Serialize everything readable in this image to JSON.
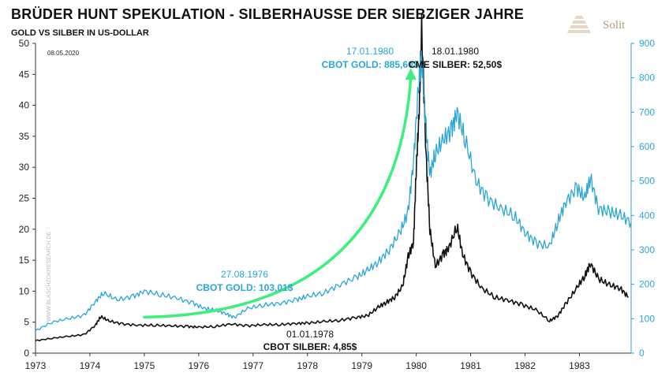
{
  "header": {
    "title": "BRÜDER HUNT SPEKULATION - SILBERHAUSSE DER SIEBZIGER JAHRE",
    "subtitle": "GOLD VS SILBER IN US-DOLLAR",
    "logo_text": "Solit",
    "date": "08.05.2020",
    "watermark": "WWW.BLASCHZOKRESEARCH.DE"
  },
  "colors": {
    "silver": "#111111",
    "gold": "#2aa6d6",
    "arrow": "#3df07d",
    "axis_right": "#2aa6d6",
    "logo": "#b89a74"
  },
  "chart_data": {
    "type": "line",
    "x_ticks": [
      "1973",
      "1974",
      "1975",
      "1976",
      "1977",
      "1978",
      "1979",
      "1980",
      "1981",
      "1982",
      "1983"
    ],
    "x_range": [
      1973.0,
      1983.95
    ],
    "y_left": {
      "label": "",
      "ticks": [
        0,
        5,
        10,
        15,
        20,
        25,
        30,
        35,
        40,
        45,
        50
      ],
      "range": [
        0,
        50
      ]
    },
    "y_right": {
      "label": "",
      "ticks": [
        0,
        100,
        200,
        300,
        400,
        500,
        600,
        700,
        800,
        900
      ],
      "range": [
        0,
        900
      ]
    },
    "grid": false,
    "series": [
      {
        "name": "",
        "axis": "left",
        "color": "#111111",
        "x": [
          1973.0,
          1973.3,
          1973.6,
          1973.9,
          1974.1,
          1974.2,
          1974.35,
          1974.6,
          1974.9,
          1975.2,
          1975.5,
          1975.8,
          1976.0,
          1976.3,
          1976.6,
          1976.9,
          1977.2,
          1977.5,
          1977.8,
          1978.0,
          1978.3,
          1978.6,
          1978.9,
          1979.1,
          1979.3,
          1979.45,
          1979.6,
          1979.75,
          1979.85,
          1979.95,
          1980.0,
          1980.05,
          1980.1,
          1980.18,
          1980.25,
          1980.35,
          1980.5,
          1980.6,
          1980.75,
          1980.85,
          1981.0,
          1981.2,
          1981.45,
          1981.7,
          1981.95,
          1982.2,
          1982.45,
          1982.6,
          1982.75,
          1982.95,
          1983.1,
          1983.2,
          1983.35,
          1983.55,
          1983.75,
          1983.9
        ],
        "y": [
          2.0,
          2.4,
          2.7,
          3.0,
          4.5,
          5.9,
          5.2,
          4.7,
          4.5,
          4.5,
          4.4,
          4.3,
          4.2,
          4.3,
          4.7,
          4.4,
          4.6,
          4.6,
          4.8,
          4.85,
          5.1,
          5.3,
          5.8,
          6.0,
          7.4,
          8.2,
          9.0,
          10.8,
          15.5,
          18.0,
          30.0,
          38.0,
          52.5,
          32.0,
          20.0,
          14.0,
          16.0,
          17.0,
          20.5,
          16.0,
          13.0,
          10.5,
          9.0,
          8.5,
          7.8,
          7.0,
          5.2,
          6.0,
          8.0,
          10.5,
          12.5,
          14.5,
          12.0,
          11.0,
          10.5,
          9.0
        ]
      },
      {
        "name": "",
        "axis": "right",
        "color": "#2aa6d6",
        "x": [
          1973.0,
          1973.3,
          1973.6,
          1973.9,
          1974.1,
          1974.25,
          1974.5,
          1974.8,
          1975.0,
          1975.3,
          1975.6,
          1975.9,
          1976.1,
          1976.3,
          1976.5,
          1976.65,
          1976.9,
          1977.2,
          1977.5,
          1977.8,
          1978.0,
          1978.3,
          1978.6,
          1978.9,
          1979.1,
          1979.3,
          1979.5,
          1979.7,
          1979.85,
          1979.95,
          1980.05,
          1980.1,
          1980.18,
          1980.25,
          1980.35,
          1980.5,
          1980.65,
          1980.75,
          1980.9,
          1981.1,
          1981.3,
          1981.55,
          1981.8,
          1982.0,
          1982.2,
          1982.45,
          1982.6,
          1982.75,
          1982.95,
          1983.1,
          1983.2,
          1983.35,
          1983.55,
          1983.75,
          1983.95
        ],
        "y": [
          65,
          90,
          100,
          110,
          150,
          175,
          155,
          165,
          180,
          170,
          160,
          145,
          130,
          125,
          115,
          103,
          130,
          140,
          145,
          155,
          165,
          175,
          200,
          220,
          240,
          265,
          300,
          350,
          410,
          560,
          800,
          850,
          650,
          520,
          580,
          620,
          650,
          700,
          620,
          500,
          450,
          420,
          400,
          350,
          320,
          310,
          380,
          440,
          480,
          450,
          510,
          420,
          410,
          400,
          380
        ]
      }
    ],
    "annotations": [
      {
        "text_date": "27.08.1976",
        "text_value": "CBOT GOLD: 103,01$",
        "color": "#2aa6d6"
      },
      {
        "text_date": "01.01.1978",
        "text_value": "CBOT SILBER: 4,85$",
        "color": "#111111"
      },
      {
        "text_date": "17.01.1980",
        "text_value": "CBOT GOLD: 885,60$",
        "color": "#2aa6d6"
      },
      {
        "text_date": "18.01.1980",
        "text_value": "CME SILBER: 52,50$",
        "color": "#111111"
      }
    ]
  }
}
